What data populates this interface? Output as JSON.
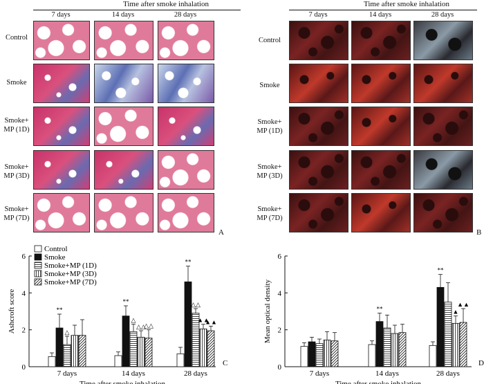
{
  "panelA": {
    "header": "Time after smoke inhalation",
    "columns": [
      "7 days",
      "14 days",
      "28 days"
    ],
    "rows": [
      "Control",
      "Smoke",
      "Smoke+\nMP (1D)",
      "Smoke+\nMP (3D)",
      "Smoke+\nMP (7D)"
    ],
    "letter": "A"
  },
  "panelB": {
    "header": "Time after smoke inhalation",
    "columns": [
      "7 days",
      "14 days",
      "28 days"
    ],
    "rows": [
      "Control",
      "Smoke",
      "Smoke+\nMP (1D)",
      "Smoke+\nMP (3D)",
      "Smoke+\nMP (7D)"
    ],
    "letter": "B"
  },
  "chart_data": [
    {
      "type": "bar",
      "panel": "C",
      "categories": [
        "7 days",
        "14 days",
        "28 days"
      ],
      "xlabel": "Time after smoke inhalation",
      "ylabel": "Ashcroft score",
      "ylim": [
        0,
        6
      ],
      "yticks": [
        0,
        2,
        4,
        6
      ],
      "legend_position": "top-left",
      "series": [
        {
          "name": "Control",
          "values": [
            0.55,
            0.6,
            0.7
          ],
          "errors": [
            0.2,
            0.2,
            0.35
          ],
          "marks": [
            "",
            "",
            ""
          ]
        },
        {
          "name": "Smoke",
          "values": [
            2.1,
            2.75,
            4.6
          ],
          "errors": [
            0.75,
            0.55,
            0.85
          ],
          "marks": [
            "**",
            "**",
            "**"
          ]
        },
        {
          "name": "Smoke+MP (1D)",
          "values": [
            1.2,
            1.9,
            2.9
          ],
          "errors": [
            0.45,
            0.4,
            0.25
          ],
          "marks": [
            "△",
            "△",
            "△△"
          ]
        },
        {
          "name": "Smoke+MP (3D)",
          "values": [
            1.7,
            1.6,
            2.05
          ],
          "errors": [
            0.55,
            0.35,
            0.25
          ],
          "marks": [
            "",
            "△△",
            "▲▲"
          ]
        },
        {
          "name": "Smoke+MP (7D)",
          "values": [
            1.7,
            1.55,
            1.95
          ],
          "errors": [
            0.85,
            0.45,
            0.25
          ],
          "marks": [
            "",
            "△△",
            "▲▲"
          ]
        }
      ],
      "letter": "C"
    },
    {
      "type": "bar",
      "panel": "D",
      "categories": [
        "7 days",
        "14 days",
        "28 days"
      ],
      "xlabel": "Time after smoke inhalation",
      "ylabel": "Mean optical density",
      "ylim": [
        0,
        6
      ],
      "yticks": [
        0,
        2,
        4,
        6
      ],
      "series": [
        {
          "name": "Control",
          "values": [
            1.1,
            1.2,
            1.15
          ],
          "errors": [
            0.2,
            0.2,
            0.2
          ],
          "marks": [
            "",
            "",
            ""
          ]
        },
        {
          "name": "Smoke",
          "values": [
            1.35,
            2.45,
            4.3
          ],
          "errors": [
            0.25,
            0.45,
            0.7
          ],
          "marks": [
            "",
            "**",
            "**"
          ]
        },
        {
          "name": "Smoke+MP (1D)",
          "values": [
            1.25,
            2.1,
            3.5
          ],
          "errors": [
            0.25,
            0.7,
            1.05
          ],
          "marks": [
            "",
            "",
            ""
          ]
        },
        {
          "name": "Smoke+MP (3D)",
          "values": [
            1.45,
            1.8,
            2.35
          ],
          "errors": [
            0.45,
            0.45,
            0.4
          ],
          "marks": [
            "",
            "",
            "▲"
          ]
        },
        {
          "name": "Smoke+MP (7D)",
          "values": [
            1.4,
            1.85,
            2.4
          ],
          "errors": [
            0.45,
            0.45,
            0.75
          ],
          "marks": [
            "",
            "",
            "▲▲"
          ]
        }
      ],
      "letter": "D"
    }
  ]
}
